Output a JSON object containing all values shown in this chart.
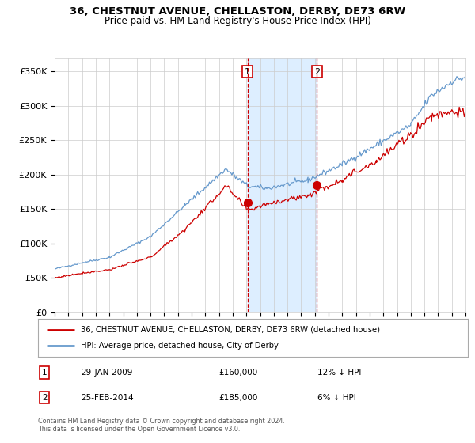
{
  "title": "36, CHESTNUT AVENUE, CHELLASTON, DERBY, DE73 6RW",
  "subtitle": "Price paid vs. HM Land Registry's House Price Index (HPI)",
  "red_label": "36, CHESTNUT AVENUE, CHELLASTON, DERBY, DE73 6RW (detached house)",
  "blue_label": "HPI: Average price, detached house, City of Derby",
  "annotation1_date": "29-JAN-2009",
  "annotation1_price": "£160,000",
  "annotation1_hpi": "12% ↓ HPI",
  "annotation2_date": "25-FEB-2014",
  "annotation2_price": "£185,000",
  "annotation2_hpi": "6% ↓ HPI",
  "footnote": "Contains HM Land Registry data © Crown copyright and database right 2024.\nThis data is licensed under the Open Government Licence v3.0.",
  "vline1_x": 2009.08,
  "vline2_x": 2014.15,
  "dot1_x": 2009.08,
  "dot1_y": 160000,
  "dot2_x": 2014.15,
  "dot2_y": 185000,
  "xmin": 1995,
  "xmax": 2025,
  "ymin": 0,
  "ymax": 370000,
  "yticks": [
    0,
    50000,
    100000,
    150000,
    200000,
    250000,
    300000,
    350000
  ],
  "ytick_labels": [
    "£0",
    "£50K",
    "£100K",
    "£150K",
    "£200K",
    "£250K",
    "£300K",
    "£350K"
  ],
  "red_color": "#cc0000",
  "blue_color": "#6699cc",
  "shade_color": "#ddeeff",
  "grid_color": "#cccccc",
  "background_color": "#ffffff"
}
